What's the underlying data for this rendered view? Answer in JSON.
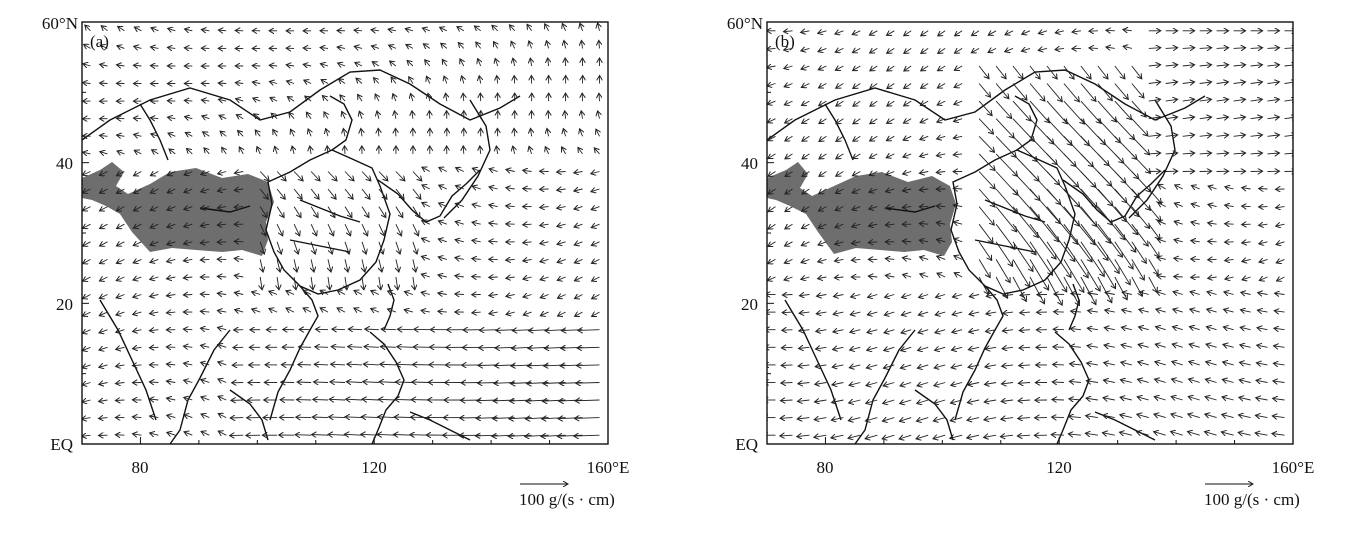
{
  "panels": [
    {
      "label": "(a)",
      "y_tick_labels": [
        "60°N",
        "40",
        "20",
        "EQ"
      ],
      "x_tick_labels": [
        "80",
        "120",
        "160°E"
      ],
      "reference_vector_label": "100 g/(s · cm)",
      "wind_regime": "northeasterly_dominant"
    },
    {
      "label": "(b)",
      "y_tick_labels": [
        "60°N",
        "40",
        "20",
        "EQ"
      ],
      "x_tick_labels": [
        "80",
        "120",
        "160°E"
      ],
      "reference_vector_label": "100 g/(s · cm)",
      "wind_regime": "southwesterly_over_china"
    }
  ],
  "map": {
    "lon_range": [
      70,
      160
    ],
    "lat_range": [
      0,
      60
    ],
    "shading_color": "#6e6e6e",
    "shading_meaning": "tibetan-plateau"
  },
  "chart_data": [
    {
      "type": "vector-field",
      "xlim": [
        70,
        160
      ],
      "ylim": [
        0,
        60
      ],
      "reference_vector": 100,
      "units": "g/(s · cm)"
    },
    {
      "type": "vector-field",
      "xlim": [
        70,
        160
      ],
      "ylim": [
        0,
        60
      ],
      "reference_vector": 100,
      "units": "g/(s · cm)"
    }
  ]
}
